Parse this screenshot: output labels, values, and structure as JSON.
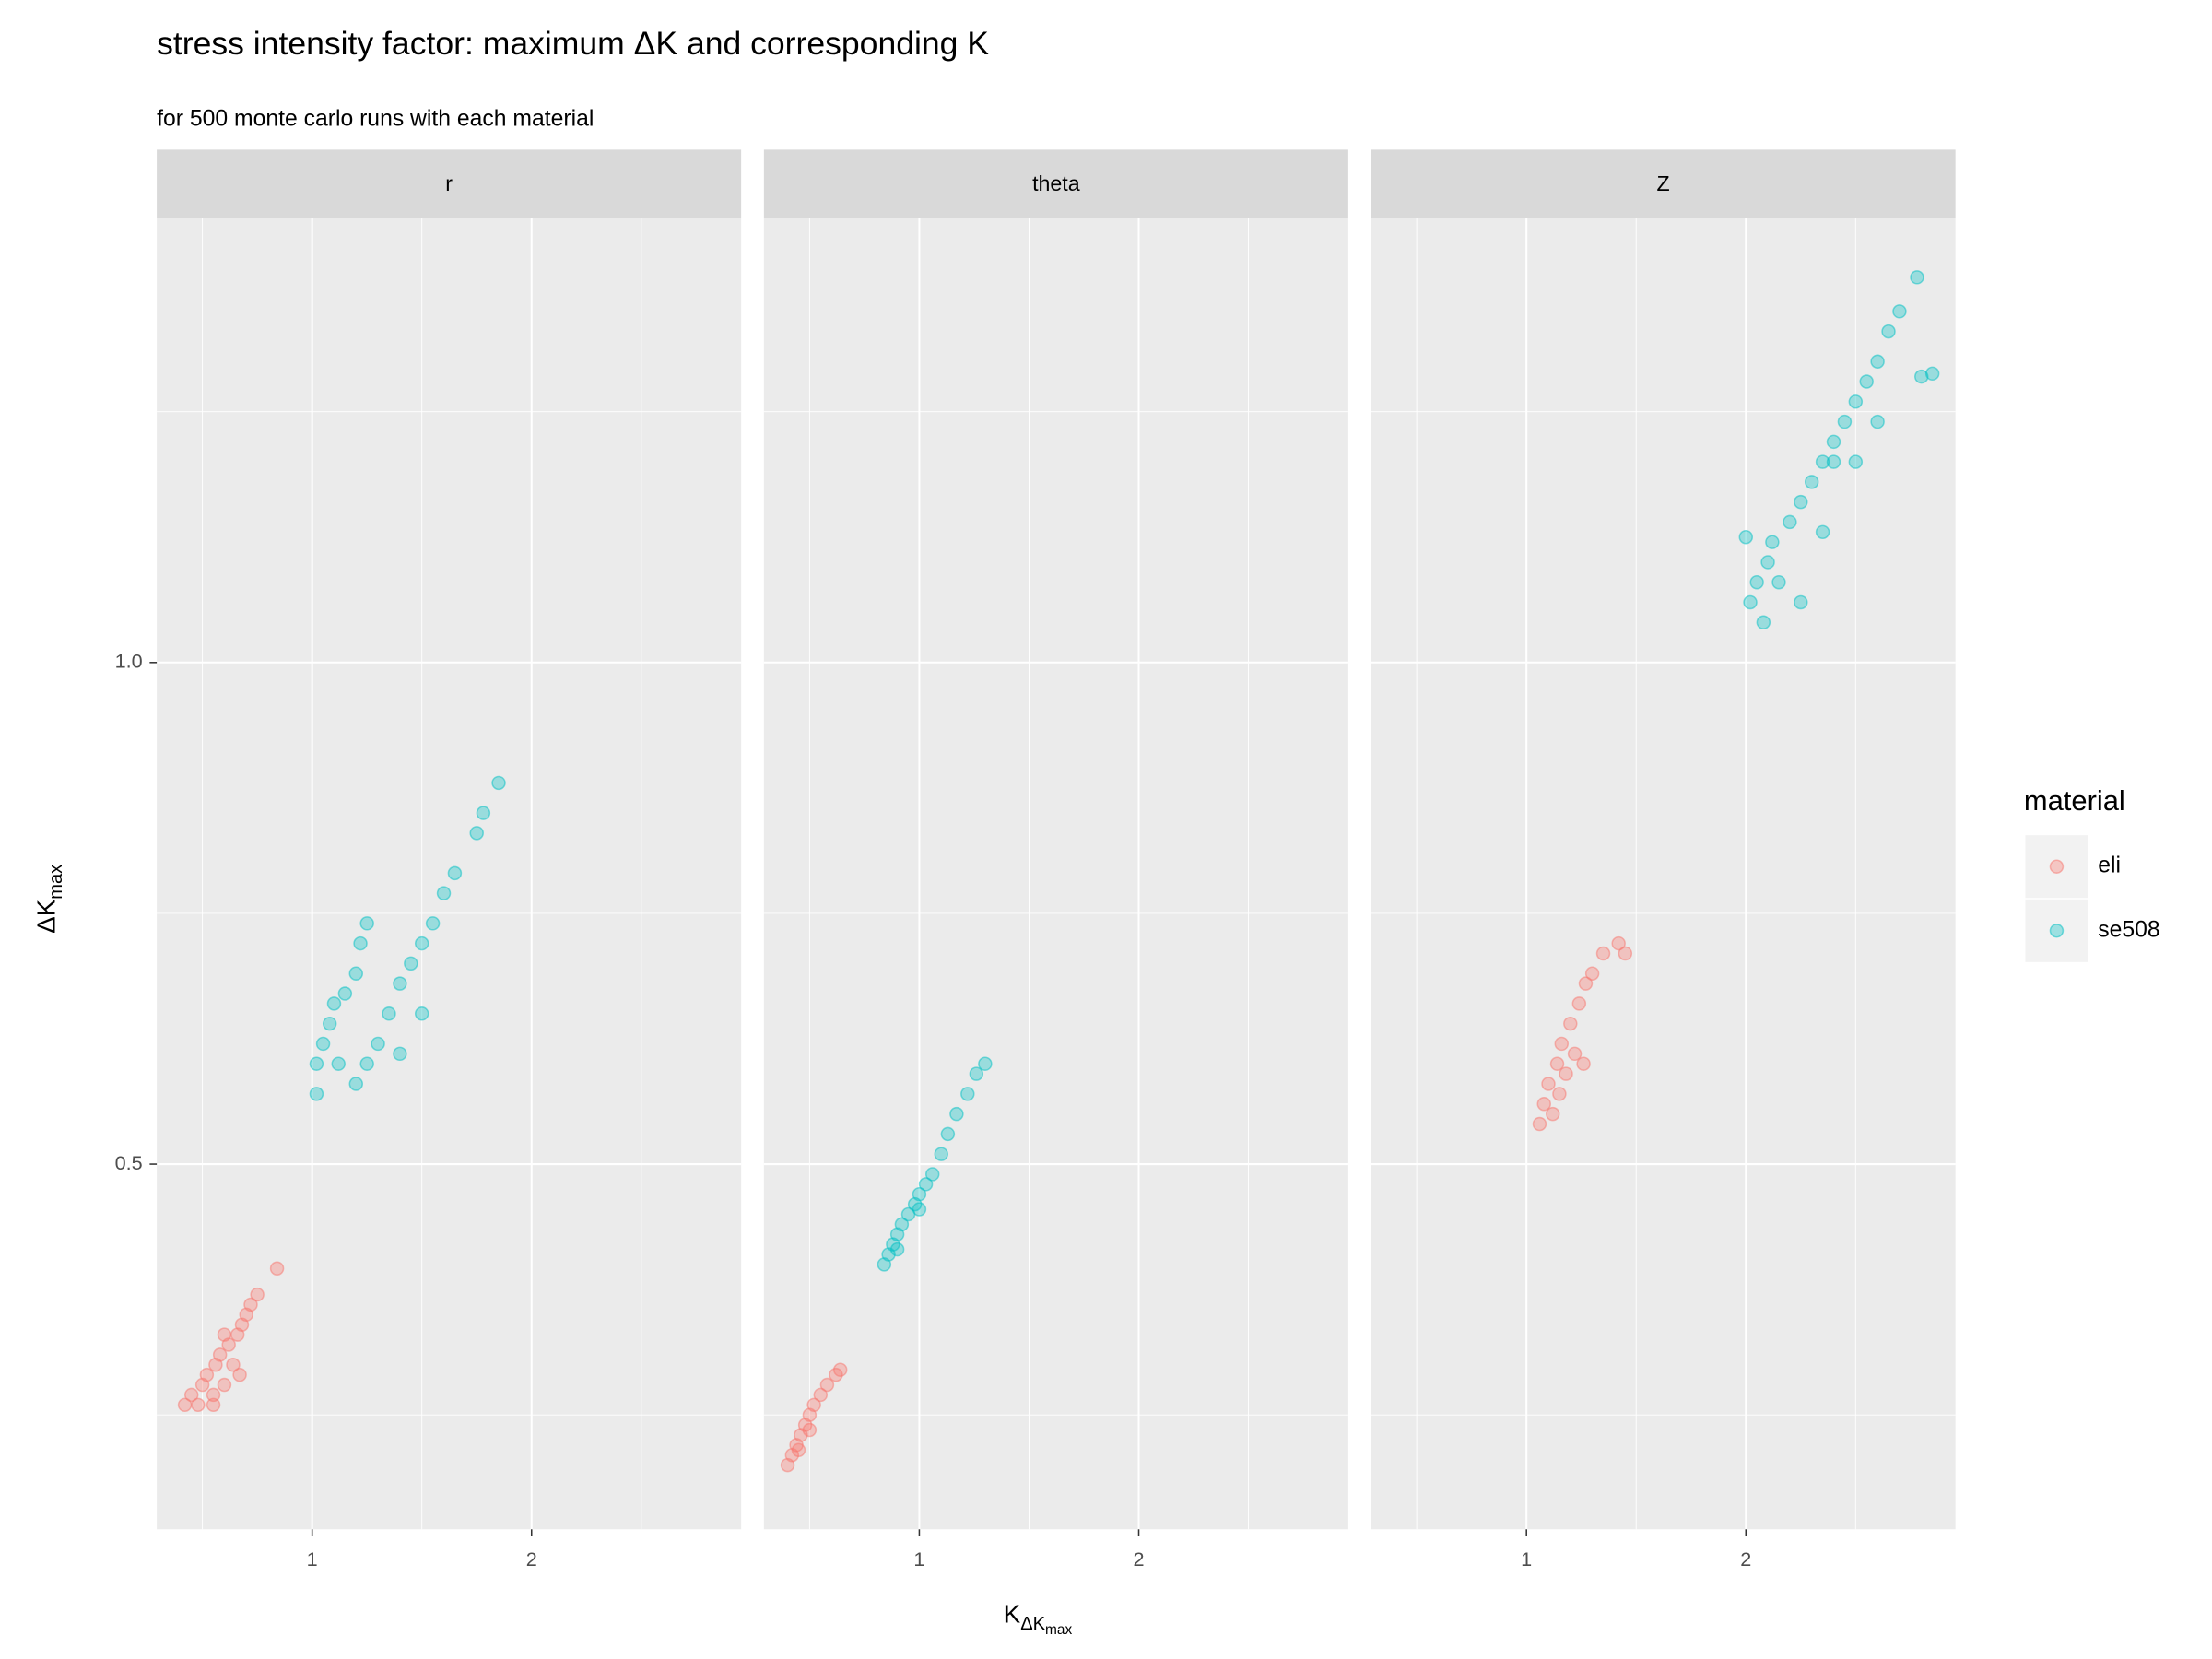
{
  "chart_data": {
    "type": "scatter",
    "title": "stress intensity factor: maximum ΔK and corresponding K",
    "subtitle": "for 500 monte carlo runs with each material",
    "x_label": "K",
    "x_label_sub": "ΔK",
    "x_label_subsub": "max",
    "y_label": "ΔK",
    "y_label_sub": "max",
    "legend_title": "material",
    "series": [
      {
        "name": "eli",
        "color": "#F8766D"
      },
      {
        "name": "se508",
        "color": "#00BFC4"
      }
    ],
    "xlim": [
      0.292,
      2.955
    ],
    "ylim": [
      0.136,
      1.443
    ],
    "xticks": [
      1,
      2
    ],
    "x_minor_ticks": [
      0.5,
      1.5,
      2.5
    ],
    "yticks": [
      0.5,
      {
        "value": 1,
        "label": "1.0"
      }
    ],
    "y_minor_ticks": [
      0.25,
      0.75,
      1.25
    ],
    "grid": true,
    "facets": [
      {
        "label": "r",
        "series": [
          {
            "x": [
              0.42,
              0.45,
              0.48,
              0.5,
              0.52,
              0.55,
              0.56,
              0.58,
              0.6,
              0.62,
              0.64,
              0.66,
              0.68,
              0.7,
              0.72,
              0.75,
              0.84,
              0.55,
              0.6,
              0.67
            ],
            "values": [
              0.26,
              0.27,
              0.26,
              0.28,
              0.29,
              0.27,
              0.3,
              0.31,
              0.28,
              0.32,
              0.3,
              0.33,
              0.34,
              0.35,
              0.36,
              0.37,
              0.396,
              0.26,
              0.33,
              0.29
            ]
          },
          {
            "x": [
              1.02,
              1.02,
              1.05,
              1.08,
              1.1,
              1.12,
              1.15,
              1.2,
              1.22,
              1.25,
              1.2,
              1.25,
              1.3,
              1.35,
              1.4,
              1.45,
              1.5,
              1.55,
              1.6,
              1.65,
              1.75,
              1.78,
              1.85,
              1.4,
              1.5
            ],
            "values": [
              0.57,
              0.6,
              0.62,
              0.64,
              0.66,
              0.6,
              0.67,
              0.69,
              0.72,
              0.74,
              0.58,
              0.6,
              0.62,
              0.65,
              0.68,
              0.7,
              0.72,
              0.74,
              0.77,
              0.79,
              0.83,
              0.85,
              0.88,
              0.61,
              0.65
            ]
          }
        ]
      },
      {
        "label": "theta",
        "series": [
          {
            "x": [
              0.4,
              0.42,
              0.44,
              0.46,
              0.48,
              0.5,
              0.52,
              0.55,
              0.58,
              0.62,
              0.64,
              0.45,
              0.5
            ],
            "values": [
              0.2,
              0.21,
              0.22,
              0.23,
              0.24,
              0.25,
              0.26,
              0.27,
              0.28,
              0.29,
              0.295,
              0.215,
              0.235
            ]
          },
          {
            "x": [
              0.84,
              0.86,
              0.88,
              0.9,
              0.92,
              0.95,
              0.98,
              1.0,
              1.03,
              1.06,
              1.1,
              1.13,
              1.17,
              1.22,
              1.26,
              1.3,
              0.9,
              1.0
            ],
            "values": [
              0.4,
              0.41,
              0.42,
              0.43,
              0.44,
              0.45,
              0.46,
              0.47,
              0.48,
              0.49,
              0.51,
              0.53,
              0.55,
              0.57,
              0.59,
              0.6,
              0.415,
              0.455
            ]
          }
        ]
      },
      {
        "label": "Z",
        "series": [
          {
            "x": [
              1.06,
              1.08,
              1.1,
              1.12,
              1.14,
              1.16,
              1.18,
              1.2,
              1.22,
              1.24,
              1.27,
              1.3,
              1.35,
              1.42,
              1.45,
              1.15,
              1.26
            ],
            "values": [
              0.54,
              0.56,
              0.58,
              0.55,
              0.6,
              0.62,
              0.59,
              0.64,
              0.61,
              0.66,
              0.68,
              0.69,
              0.71,
              0.72,
              0.71,
              0.57,
              0.6
            ]
          },
          {
            "x": [
              2.0,
              2.02,
              2.05,
              2.08,
              2.1,
              2.12,
              2.15,
              2.2,
              2.25,
              2.3,
              2.35,
              2.4,
              2.45,
              2.5,
              2.55,
              2.6,
              2.65,
              2.7,
              2.78,
              2.85,
              2.8,
              2.5,
              2.35,
              2.6,
              2.25,
              2.4
            ],
            "values": [
              1.125,
              1.06,
              1.08,
              1.04,
              1.1,
              1.12,
              1.08,
              1.14,
              1.16,
              1.18,
              1.2,
              1.22,
              1.24,
              1.26,
              1.28,
              1.3,
              1.33,
              1.35,
              1.384,
              1.288,
              1.285,
              1.2,
              1.13,
              1.24,
              1.06,
              1.2
            ]
          }
        ]
      }
    ]
  }
}
